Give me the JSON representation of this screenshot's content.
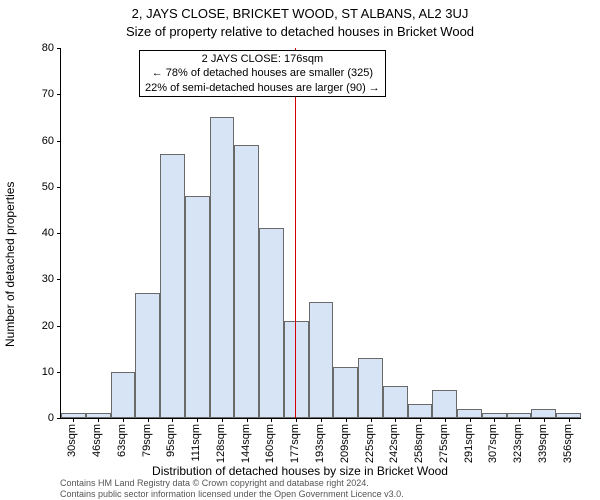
{
  "title_line1": "2, JAYS CLOSE, BRICKET WOOD, ST ALBANS, AL2 3UJ",
  "title_line2": "Size of property relative to detached houses in Bricket Wood",
  "ylabel": "Number of detached properties",
  "xlabel": "Distribution of detached houses by size in Bricket Wood",
  "chart": {
    "type": "bar",
    "ylim": [
      0,
      80
    ],
    "ytick_step": 10,
    "bar_fill": "#d6e4f5",
    "bar_border": "#6a6a6a",
    "background": "#ffffff",
    "marker_color": "#d40000",
    "marker_value": 176,
    "categories": [
      "30sqm",
      "46sqm",
      "63sqm",
      "79sqm",
      "95sqm",
      "111sqm",
      "128sqm",
      "144sqm",
      "160sqm",
      "177sqm",
      "193sqm",
      "209sqm",
      "225sqm",
      "242sqm",
      "258sqm",
      "275sqm",
      "291sqm",
      "307sqm",
      "323sqm",
      "339sqm",
      "356sqm"
    ],
    "values": [
      1,
      1,
      10,
      27,
      57,
      48,
      65,
      59,
      41,
      21,
      25,
      11,
      13,
      7,
      3,
      6,
      2,
      1,
      1,
      2,
      1
    ],
    "fontsize_title": 13,
    "fontsize_label": 12,
    "fontsize_tick": 11,
    "fontsize_annotation": 11
  },
  "annotation": {
    "line1": "2 JAYS CLOSE: 176sqm",
    "line2": "← 78% of detached houses are smaller (325)",
    "line3": "22% of semi-detached houses are larger (90) →"
  },
  "credit_line1": "Contains HM Land Registry data © Crown copyright and database right 2024.",
  "credit_line2": "Contains public sector information licensed under the Open Government Licence v3.0."
}
